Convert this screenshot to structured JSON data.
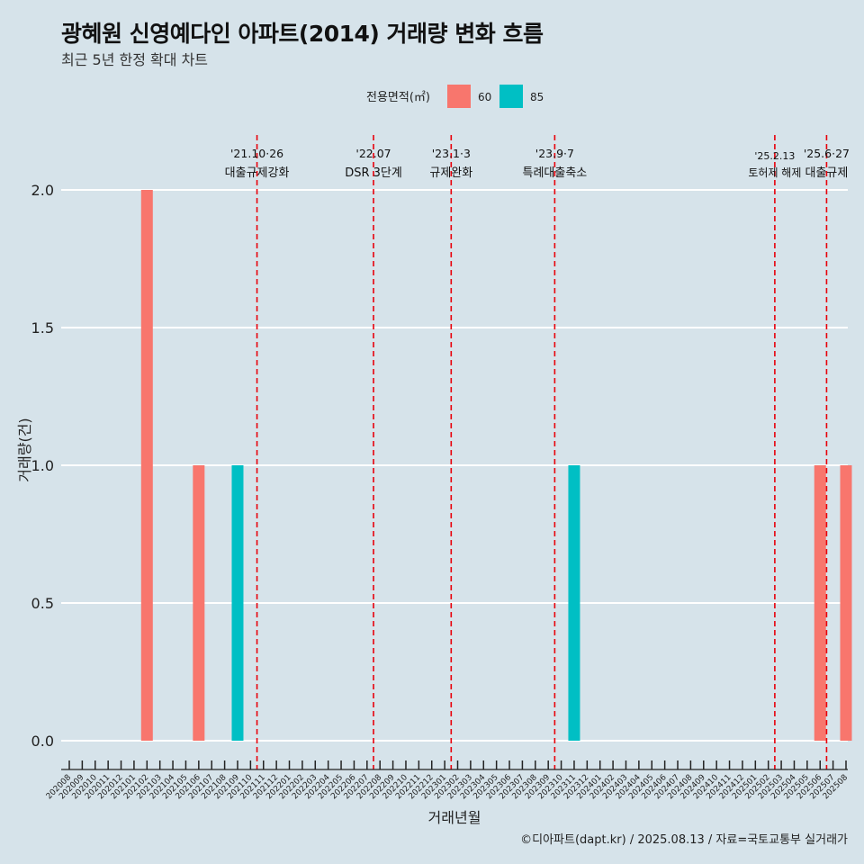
{
  "title": "광혜원 신영예다인 아파트(2014) 거래량 변화 흐름",
  "subtitle": "최근 5년 한정 확대 차트",
  "caption": "©디아파트(dapt.kr) / 2025.08.13 / 자료=국토교통부 실거래가",
  "colors": {
    "background": "#d6e3ea",
    "s60": "#f8766d",
    "s85": "#00bfc4",
    "event": "#e8000b"
  },
  "chart_data": {
    "type": "bar",
    "xlabel": "거래년월",
    "ylabel": "거래량(건)",
    "ylim": [
      0,
      2
    ],
    "yticks": [
      "0.0",
      "0.5",
      "1.0",
      "1.5",
      "2.0"
    ],
    "grid": true,
    "legend_position": "top",
    "legend_title": "전용면적(㎡)",
    "categories": [
      "202008",
      "202009",
      "202010",
      "202011",
      "202012",
      "202101",
      "202102",
      "202103",
      "202104",
      "202105",
      "202106",
      "202107",
      "202108",
      "202109",
      "202110",
      "202111",
      "202112",
      "202201",
      "202202",
      "202203",
      "202204",
      "202205",
      "202206",
      "202207",
      "202208",
      "202209",
      "202210",
      "202211",
      "202212",
      "202301",
      "202302",
      "202303",
      "202304",
      "202305",
      "202306",
      "202307",
      "202308",
      "202309",
      "202310",
      "202311",
      "202312",
      "202401",
      "202402",
      "202403",
      "202404",
      "202405",
      "202406",
      "202407",
      "202408",
      "202409",
      "202410",
      "202411",
      "202412",
      "202501",
      "202502",
      "202503",
      "202504",
      "202505",
      "202506",
      "202507",
      "202508"
    ],
    "series": [
      {
        "name": "60",
        "color": "#f8766d",
        "points": [
          {
            "x": "202102",
            "y": 2
          },
          {
            "x": "202106",
            "y": 1
          },
          {
            "x": "202506",
            "y": 1
          },
          {
            "x": "202508",
            "y": 1
          }
        ]
      },
      {
        "name": "85",
        "color": "#00bfc4",
        "points": [
          {
            "x": "202109",
            "y": 1
          },
          {
            "x": "202311",
            "y": 1
          }
        ]
      }
    ],
    "events": [
      {
        "x": "202110",
        "date": "'21.10·26",
        "label": "대출규제강화"
      },
      {
        "x": "202207",
        "date": "'22.07",
        "label": "DSR 3단계"
      },
      {
        "x": "202301",
        "date": "'23.1·3",
        "label": "규제완화"
      },
      {
        "x": "202309",
        "date": "'23.9·7",
        "label": "특례대출축소"
      },
      {
        "x": "202502",
        "date": "'25.2.13",
        "label": "토허제 해제"
      },
      {
        "x": "202506",
        "date": "'25.6·27",
        "label": "대출규제"
      }
    ]
  }
}
